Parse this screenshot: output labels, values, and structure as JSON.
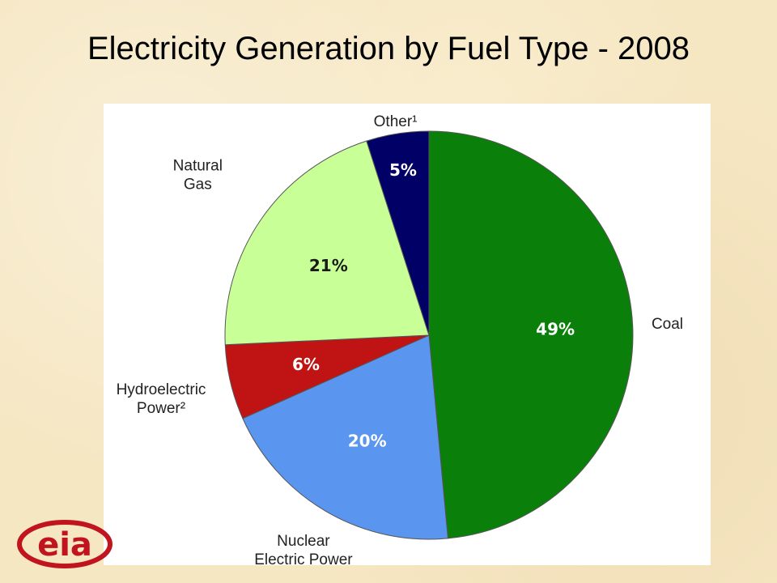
{
  "title": "Electricity Generation by Fuel Type - 2008",
  "chart_data": {
    "type": "pie",
    "title": "Electricity Generation by Fuel Type - 2008",
    "start_angle_deg": 0,
    "direction": "clockwise",
    "slices": [
      {
        "name": "Coal",
        "label_lines": [
          "Coal"
        ],
        "value": 49,
        "value_label": "49%",
        "color": "#0a800a",
        "value_label_color": "#ffffff"
      },
      {
        "name": "Nuclear Electric Power",
        "label_lines": [
          "Nuclear",
          "Electric Power"
        ],
        "value": 20,
        "value_label": "20%",
        "color": "#5a95f0",
        "value_label_color": "#ffffff"
      },
      {
        "name": "Hydroelectric Power²",
        "label_lines": [
          "Hydroelectric",
          "Power²"
        ],
        "value": 6,
        "value_label": "6%",
        "color": "#c01414",
        "value_label_color": "#ffffff"
      },
      {
        "name": "Natural Gas",
        "label_lines": [
          "Natural",
          "Gas"
        ],
        "value": 21,
        "value_label": "21%",
        "color": "#c8ff96",
        "value_label_color": "#1a1a1a"
      },
      {
        "name": "Other¹",
        "label_lines": [
          "Other¹"
        ],
        "value": 5,
        "value_label": "5%",
        "color": "#000066",
        "value_label_color": "#ffffff"
      }
    ]
  },
  "logo": {
    "text": "eia",
    "color": "#c0141e"
  }
}
